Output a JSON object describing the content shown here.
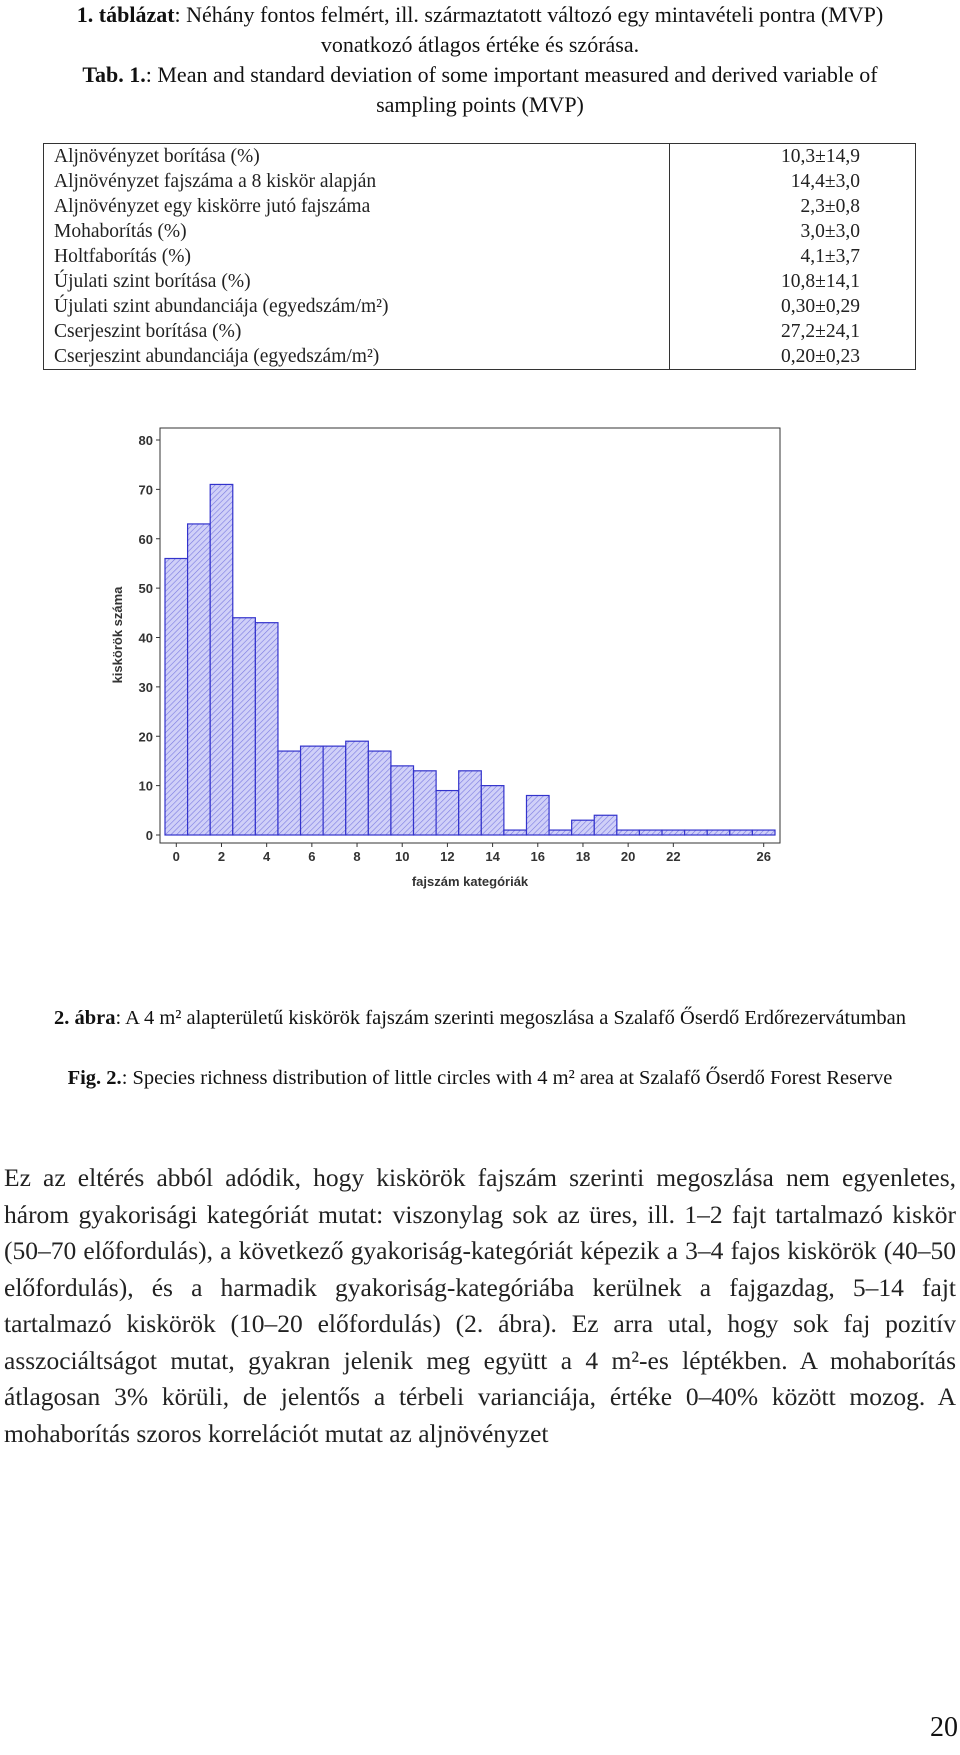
{
  "table_caption": {
    "hu_label": "1. táblázat",
    "hu_text": ": Néhány fontos felmért, ill. származtatott változó egy mintavételi pontra (MVP) vonatkozó átlagos értéke és szórása.",
    "en_label": "Tab. 1.",
    "en_text": ": Mean and standard deviation of some important measured and derived variable of sampling points (MVP)"
  },
  "table": {
    "rows": [
      {
        "label": "Aljnövényzet borítása (%)",
        "value": "10,3±14,9"
      },
      {
        "label": "Aljnövényzet fajszáma a 8 kiskör alapján",
        "value": "14,4±3,0"
      },
      {
        "label": "Aljnövényzet egy kiskörre jutó fajszáma",
        "value": "2,3±0,8"
      },
      {
        "label": "Mohaborítás (%)",
        "value": "3,0±3,0"
      },
      {
        "label": "Holtfaborítás (%)",
        "value": "4,1±3,7"
      },
      {
        "label": "Újulati szint borítása (%)",
        "value": "10,8±14,1"
      },
      {
        "label": "Újulati szint abundanciája (egyedszám/m²)",
        "value": "0,30±0,29"
      },
      {
        "label": "Cserjeszint borítása (%)",
        "value": "27,2±24,1"
      },
      {
        "label": "Cserjeszint abundanciája (egyedszám/m²)",
        "value": "0,20±0,23"
      }
    ]
  },
  "chart_data": {
    "type": "bar",
    "xlabel": "fajszám kategóriák",
    "ylabel": "kiskörök száma",
    "ylim": [
      0,
      80
    ],
    "yticks": [
      0,
      10,
      20,
      30,
      40,
      50,
      60,
      70,
      80
    ],
    "xticks": [
      0,
      2,
      4,
      6,
      8,
      10,
      12,
      14,
      16,
      18,
      20,
      22,
      26
    ],
    "categories": [
      0,
      1,
      2,
      3,
      4,
      5,
      6,
      7,
      8,
      9,
      10,
      11,
      12,
      13,
      14,
      15,
      16,
      17,
      18,
      19,
      20,
      21,
      22,
      23,
      24,
      25,
      26
    ],
    "values": [
      56,
      63,
      71,
      44,
      43,
      17,
      18,
      18,
      19,
      17,
      14,
      13,
      9,
      13,
      10,
      1,
      8,
      1,
      3,
      4,
      1,
      1,
      1,
      1,
      1,
      1,
      1
    ],
    "bar_color": "#3333cc",
    "fill_color": "#d0d0f8",
    "grid": false
  },
  "figure_caption": {
    "hu_label": "2. ábra",
    "hu_text": ": A 4 m² alapterületű kiskörök fajszám szerinti megoszlása a Szalafő Őserdő Erdőrezervátumban",
    "en_label": "Fig. 2.",
    "en_text": ": Species richness distribution of little circles with 4 m² area at Szalafő Őserdő Forest Reserve"
  },
  "body_text": "Ez az eltérés abból adódik, hogy kiskörök fajszám szerinti megoszlása nem egyenletes, három gyakorisági kategóriát mutat: viszonylag sok az üres, ill. 1–2 fajt tartalmazó kiskör (50–70 előfordulás), a következő gyakoriság-kategóriát képezik a 3–4 fajos kiskörök (40–50 előfordulás), és a harmadik gyakoriság-kategóriába kerülnek a fajgazdag, 5–14 fajt tartalmazó kiskörök (10–20 előfordulás) (2. ábra). Ez arra utal, hogy sok faj pozitív asszociáltságot mutat, gyakran jelenik meg együtt a 4 m²-es léptékben. A mohaborítás átlagosan 3% körüli, de jelentős a térbeli varianciája, értéke 0–40% között mozog. A mohaborítás szoros korrelációt mutat az aljnövényzet",
  "page_number": "20"
}
